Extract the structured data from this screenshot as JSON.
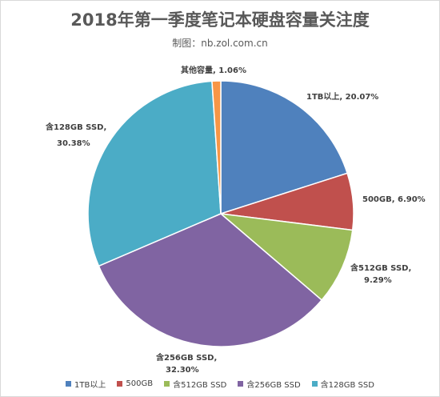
{
  "chart_data": {
    "type": "pie",
    "title": "2018年第一季度笔记本硬盘容量关注度",
    "subtitle": "制图：nb.zol.com.cn",
    "slices": [
      {
        "name": "1TB以上",
        "value": 20.07,
        "label_text": "1TB以上, 20.07%",
        "color": "#4f81bd"
      },
      {
        "name": "500GB",
        "value": 6.9,
        "label_text": "500GB, 6.90%",
        "color": "#c0504d"
      },
      {
        "name": "含512GB SSD",
        "value": 9.29,
        "label_line1": "含512GB SSD,",
        "label_line2": "9.29%",
        "color": "#9bbb59"
      },
      {
        "name": "含256GB SSD",
        "value": 32.3,
        "label_line1": "含256GB SSD,",
        "label_line2": "32.30%",
        "color": "#8064a2"
      },
      {
        "name": "含128GB SSD",
        "value": 30.38,
        "label_line1": "含128GB SSD,",
        "label_line2": "30.38%",
        "color": "#4bacc6"
      },
      {
        "name": "其他容量",
        "value": 1.06,
        "label_text": "其他容量, 1.06%",
        "color": "#f79646"
      }
    ],
    "legend": [
      "1TB以上",
      "500GB",
      "含512GB SSD",
      "含256GB SSD",
      "含128GB SSD"
    ],
    "legend_position": "bottom"
  }
}
